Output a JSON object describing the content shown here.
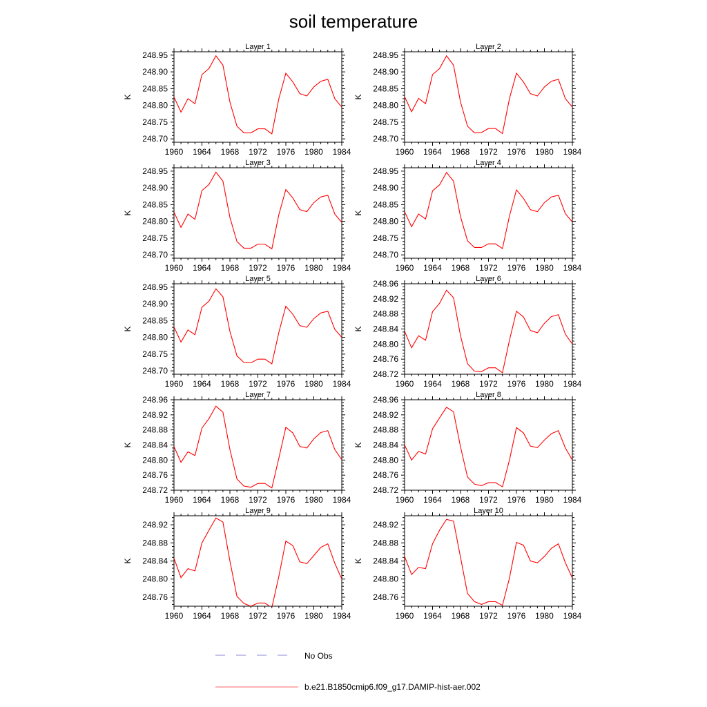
{
  "title": "soil temperature",
  "legend": [
    {
      "label": "No Obs",
      "color": "#8b8bd8",
      "style": "dashed"
    },
    {
      "label": "b.e21.B1850cmip6.f09_g17.DAMIP-hist-aer.002",
      "color": "#ff0000",
      "style": "solid"
    }
  ],
  "chart_data": [
    {
      "type": "line",
      "title": "Layer 1",
      "ylabel": "K",
      "xlim": [
        1960,
        1984
      ],
      "ylim": [
        248.69,
        248.96
      ],
      "xticks": [
        1960,
        1964,
        1968,
        1972,
        1976,
        1980,
        1984
      ],
      "yticks": [
        248.7,
        248.75,
        248.8,
        248.85,
        248.9,
        248.95
      ],
      "ytick_decimals": 2,
      "x": [
        1960,
        1961,
        1962,
        1963,
        1964,
        1965,
        1966,
        1967,
        1968,
        1969,
        1970,
        1971,
        1972,
        1973,
        1974,
        1975,
        1976,
        1977,
        1978,
        1979,
        1980,
        1981,
        1982,
        1983,
        1984
      ],
      "series": [
        {
          "color": "#ff0000",
          "values": [
            248.825,
            248.78,
            248.82,
            248.805,
            248.892,
            248.91,
            248.948,
            248.92,
            248.81,
            248.738,
            248.718,
            248.718,
            248.73,
            248.73,
            248.715,
            248.82,
            248.896,
            248.87,
            248.835,
            248.828,
            248.855,
            248.872,
            248.878,
            248.82,
            248.795
          ]
        }
      ]
    },
    {
      "type": "line",
      "title": "Layer 2",
      "ylabel": "K",
      "xlim": [
        1960,
        1984
      ],
      "ylim": [
        248.69,
        248.96
      ],
      "xticks": [
        1960,
        1964,
        1968,
        1972,
        1976,
        1980,
        1984
      ],
      "yticks": [
        248.7,
        248.75,
        248.8,
        248.85,
        248.9,
        248.95
      ],
      "ytick_decimals": 2,
      "x": [
        1960,
        1961,
        1962,
        1963,
        1964,
        1965,
        1966,
        1967,
        1968,
        1969,
        1970,
        1971,
        1972,
        1973,
        1974,
        1975,
        1976,
        1977,
        1978,
        1979,
        1980,
        1981,
        1982,
        1983,
        1984
      ],
      "series": [
        {
          "color": "#ff0000",
          "values": [
            248.826,
            248.781,
            248.821,
            248.805,
            248.892,
            248.91,
            248.948,
            248.92,
            248.81,
            248.738,
            248.718,
            248.719,
            248.731,
            248.731,
            248.716,
            248.82,
            248.896,
            248.87,
            248.835,
            248.828,
            248.855,
            248.872,
            248.878,
            248.82,
            248.795
          ]
        }
      ]
    },
    {
      "type": "line",
      "title": "Layer 3",
      "ylabel": "K",
      "xlim": [
        1960,
        1984
      ],
      "ylim": [
        248.69,
        248.96
      ],
      "xticks": [
        1960,
        1964,
        1968,
        1972,
        1976,
        1980,
        1984
      ],
      "yticks": [
        248.7,
        248.75,
        248.8,
        248.85,
        248.9,
        248.95
      ],
      "ytick_decimals": 2,
      "x": [
        1960,
        1961,
        1962,
        1963,
        1964,
        1965,
        1966,
        1967,
        1968,
        1969,
        1970,
        1971,
        1972,
        1973,
        1974,
        1975,
        1976,
        1977,
        1978,
        1979,
        1980,
        1981,
        1982,
        1983,
        1984
      ],
      "series": [
        {
          "color": "#ff0000",
          "values": [
            248.828,
            248.782,
            248.822,
            248.806,
            248.892,
            248.91,
            248.947,
            248.92,
            248.812,
            248.74,
            248.72,
            248.72,
            248.732,
            248.732,
            248.718,
            248.82,
            248.895,
            248.87,
            248.835,
            248.829,
            248.856,
            248.873,
            248.878,
            248.822,
            248.797
          ]
        }
      ]
    },
    {
      "type": "line",
      "title": "Layer 4",
      "ylabel": "K",
      "xlim": [
        1960,
        1984
      ],
      "ylim": [
        248.69,
        248.96
      ],
      "xticks": [
        1960,
        1964,
        1968,
        1972,
        1976,
        1980,
        1984
      ],
      "yticks": [
        248.7,
        248.75,
        248.8,
        248.85,
        248.9,
        248.95
      ],
      "ytick_decimals": 2,
      "x": [
        1960,
        1961,
        1962,
        1963,
        1964,
        1965,
        1966,
        1967,
        1968,
        1969,
        1970,
        1971,
        1972,
        1973,
        1974,
        1975,
        1976,
        1977,
        1978,
        1979,
        1980,
        1981,
        1982,
        1983,
        1984
      ],
      "series": [
        {
          "color": "#ff0000",
          "values": [
            248.829,
            248.784,
            248.822,
            248.807,
            248.891,
            248.909,
            248.946,
            248.92,
            248.814,
            248.742,
            248.722,
            248.722,
            248.733,
            248.733,
            248.719,
            248.816,
            248.894,
            248.869,
            248.835,
            248.829,
            248.856,
            248.873,
            248.878,
            248.823,
            248.798
          ]
        }
      ]
    },
    {
      "type": "line",
      "title": "Layer 5",
      "ylabel": "K",
      "xlim": [
        1960,
        1984
      ],
      "ylim": [
        248.69,
        248.96
      ],
      "xticks": [
        1960,
        1964,
        1968,
        1972,
        1976,
        1980,
        1984
      ],
      "yticks": [
        248.7,
        248.75,
        248.8,
        248.85,
        248.9,
        248.95
      ],
      "ytick_decimals": 2,
      "x": [
        1960,
        1961,
        1962,
        1963,
        1964,
        1965,
        1966,
        1967,
        1968,
        1969,
        1970,
        1971,
        1972,
        1973,
        1974,
        1975,
        1976,
        1977,
        1978,
        1979,
        1980,
        1981,
        1982,
        1983,
        1984
      ],
      "series": [
        {
          "color": "#ff0000",
          "values": [
            248.831,
            248.786,
            248.822,
            248.808,
            248.89,
            248.908,
            248.945,
            248.921,
            248.818,
            248.745,
            248.725,
            248.724,
            248.735,
            248.735,
            248.721,
            248.815,
            248.893,
            248.869,
            248.835,
            248.83,
            248.856,
            248.873,
            248.878,
            248.824,
            248.8
          ]
        }
      ]
    },
    {
      "type": "line",
      "title": "Layer 6",
      "ylabel": "K",
      "xlim": [
        1960,
        1984
      ],
      "ylim": [
        248.72,
        248.96
      ],
      "xticks": [
        1960,
        1964,
        1968,
        1972,
        1976,
        1980,
        1984
      ],
      "yticks": [
        248.72,
        248.76,
        248.8,
        248.84,
        248.88,
        248.92,
        248.96
      ],
      "ytick_decimals": 2,
      "x": [
        1960,
        1961,
        1962,
        1963,
        1964,
        1965,
        1966,
        1967,
        1968,
        1969,
        1970,
        1971,
        1972,
        1973,
        1974,
        1975,
        1976,
        1977,
        1978,
        1979,
        1980,
        1981,
        1982,
        1983,
        1984
      ],
      "series": [
        {
          "color": "#ff0000",
          "values": [
            248.834,
            248.79,
            248.822,
            248.81,
            248.886,
            248.908,
            248.943,
            248.923,
            248.822,
            248.748,
            248.728,
            248.727,
            248.737,
            248.737,
            248.724,
            248.81,
            248.887,
            248.872,
            248.836,
            248.83,
            248.855,
            248.873,
            248.878,
            248.826,
            248.8
          ]
        }
      ]
    },
    {
      "type": "line",
      "title": "Layer 7",
      "ylabel": "K",
      "xlim": [
        1960,
        1984
      ],
      "ylim": [
        248.72,
        248.96
      ],
      "xticks": [
        1960,
        1964,
        1968,
        1972,
        1976,
        1980,
        1984
      ],
      "yticks": [
        248.72,
        248.76,
        248.8,
        248.84,
        248.88,
        248.92,
        248.96
      ],
      "ytick_decimals": 2,
      "x": [
        1960,
        1961,
        1962,
        1963,
        1964,
        1965,
        1966,
        1967,
        1968,
        1969,
        1970,
        1971,
        1972,
        1973,
        1974,
        1975,
        1976,
        1977,
        1978,
        1979,
        1980,
        1981,
        1982,
        1983,
        1984
      ],
      "series": [
        {
          "color": "#ff0000",
          "values": [
            248.836,
            248.794,
            248.822,
            248.812,
            248.885,
            248.91,
            248.943,
            248.927,
            248.828,
            248.75,
            248.731,
            248.728,
            248.738,
            248.738,
            248.726,
            248.805,
            248.887,
            248.872,
            248.836,
            248.832,
            248.856,
            248.873,
            248.878,
            248.828,
            248.801
          ]
        }
      ]
    },
    {
      "type": "line",
      "title": "Layer 8",
      "ylabel": "K",
      "xlim": [
        1960,
        1984
      ],
      "ylim": [
        248.72,
        248.96
      ],
      "xticks": [
        1960,
        1964,
        1968,
        1972,
        1976,
        1980,
        1984
      ],
      "yticks": [
        248.72,
        248.76,
        248.8,
        248.84,
        248.88,
        248.92,
        248.96
      ],
      "ytick_decimals": 2,
      "x": [
        1960,
        1961,
        1962,
        1963,
        1964,
        1965,
        1966,
        1967,
        1968,
        1969,
        1970,
        1971,
        1972,
        1973,
        1974,
        1975,
        1976,
        1977,
        1978,
        1979,
        1980,
        1981,
        1982,
        1983,
        1984
      ],
      "series": [
        {
          "color": "#ff0000",
          "values": [
            248.84,
            248.8,
            248.823,
            248.816,
            248.883,
            248.912,
            248.94,
            248.928,
            248.835,
            248.755,
            248.736,
            248.732,
            248.74,
            248.74,
            248.729,
            248.8,
            248.886,
            248.872,
            248.837,
            248.833,
            248.853,
            248.87,
            248.878,
            248.832,
            248.8
          ]
        }
      ]
    },
    {
      "type": "line",
      "title": "Layer 9",
      "ylabel": "K",
      "xlim": [
        1960,
        1984
      ],
      "ylim": [
        248.74,
        248.94
      ],
      "xticks": [
        1960,
        1964,
        1968,
        1972,
        1976,
        1980,
        1984
      ],
      "yticks": [
        248.76,
        248.8,
        248.84,
        248.88,
        248.92
      ],
      "ytick_decimals": 2,
      "x": [
        1960,
        1961,
        1962,
        1963,
        1964,
        1965,
        1966,
        1967,
        1968,
        1969,
        1970,
        1971,
        1972,
        1973,
        1974,
        1975,
        1976,
        1977,
        1978,
        1979,
        1980,
        1981,
        1982,
        1983,
        1984
      ],
      "series": [
        {
          "color": "#ff0000",
          "values": [
            248.846,
            248.803,
            248.823,
            248.818,
            248.88,
            248.908,
            248.935,
            248.926,
            248.84,
            248.762,
            248.746,
            248.74,
            248.747,
            248.747,
            248.737,
            248.806,
            248.884,
            248.874,
            248.838,
            248.834,
            248.852,
            248.87,
            248.878,
            248.835,
            248.8
          ]
        }
      ]
    },
    {
      "type": "line",
      "title": "Layer 10",
      "ylabel": "K",
      "xlim": [
        1960,
        1984
      ],
      "ylim": [
        248.74,
        248.94
      ],
      "xticks": [
        1960,
        1964,
        1968,
        1972,
        1976,
        1980,
        1984
      ],
      "yticks": [
        248.76,
        248.8,
        248.84,
        248.88,
        248.92
      ],
      "ytick_decimals": 2,
      "x": [
        1960,
        1961,
        1962,
        1963,
        1964,
        1965,
        1966,
        1967,
        1968,
        1969,
        1970,
        1971,
        1972,
        1973,
        1974,
        1975,
        1976,
        1977,
        1978,
        1979,
        1980,
        1981,
        1982,
        1983,
        1984
      ],
      "series": [
        {
          "color": "#ff0000",
          "values": [
            248.85,
            248.81,
            248.826,
            248.823,
            248.878,
            248.908,
            248.932,
            248.928,
            248.848,
            248.768,
            248.75,
            248.744,
            248.75,
            248.75,
            248.742,
            248.802,
            248.881,
            248.875,
            248.84,
            248.836,
            248.85,
            248.868,
            248.878,
            248.836,
            248.802
          ]
        }
      ]
    }
  ]
}
